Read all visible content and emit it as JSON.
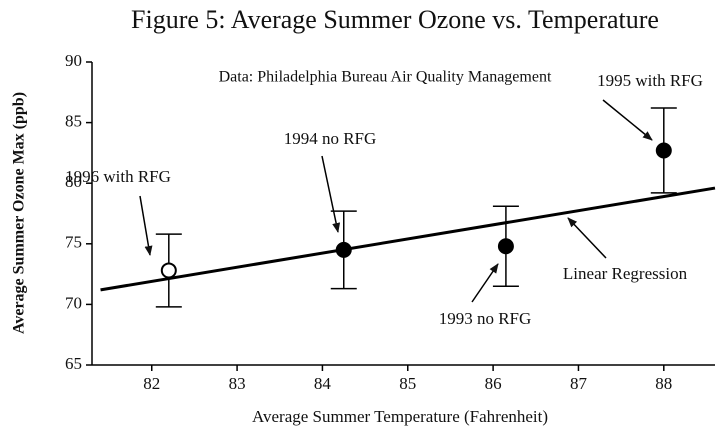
{
  "chart_data": {
    "type": "scatter",
    "title": "Figure 5: Average Summer Ozone vs. Temperature",
    "subtitle": "Data: Philadelphia Bureau Air Quality Management",
    "x_label": "Average Summer Temperature (Fahrenheit)",
    "y_label": "Average Summer Ozone Max (ppb)",
    "x": [
      82.2,
      84.25,
      86.15,
      88.0
    ],
    "values": [
      72.8,
      74.5,
      74.8,
      82.7
    ],
    "errors": [
      3.0,
      3.2,
      3.3,
      3.5
    ],
    "filled": [
      false,
      true,
      true,
      true
    ],
    "color": "#000000",
    "regression": {
      "x": [
        81.4,
        88.6
      ],
      "y": [
        71.2,
        79.6
      ]
    },
    "annotations": [
      "1996 with RFG",
      "1994 no RFG",
      "1993 no RFG",
      "1995 with RFG",
      "Linear Regression"
    ],
    "xlim": [
      81.3,
      88.6
    ],
    "ylim": [
      65,
      90
    ],
    "xticks": [
      82,
      83,
      84,
      85,
      86,
      87,
      88
    ],
    "yticks": [
      65,
      70,
      75,
      80,
      85,
      90
    ],
    "grid": false
  }
}
